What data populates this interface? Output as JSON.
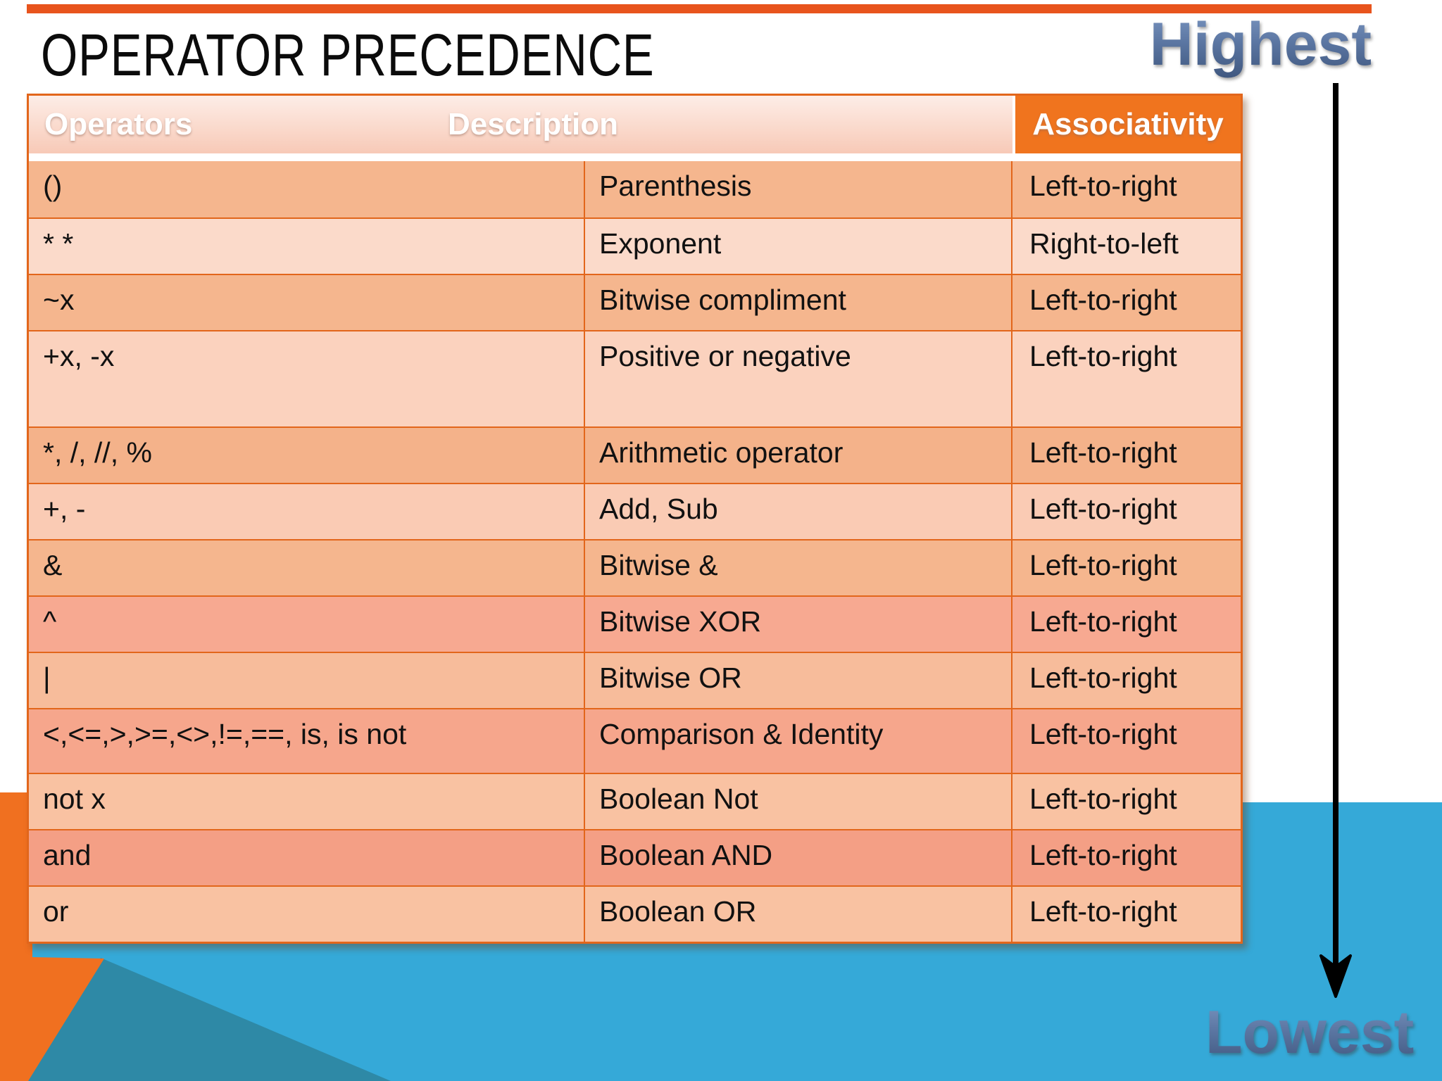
{
  "page": {
    "title": "OPERATOR PRECEDENCE"
  },
  "annotations": {
    "highest": "Highest",
    "lowest": "Lowest",
    "arrow_direction": "down"
  },
  "table": {
    "headers": [
      {
        "label": "Operators"
      },
      {
        "label": "Description"
      },
      {
        "label": "Associativity"
      }
    ],
    "rows": [
      {
        "operators": "()",
        "description": "Parenthesis",
        "associativity": "Left-to-right",
        "bg": "#F5B68E"
      },
      {
        "operators": "* *",
        "description": "Exponent",
        "associativity": "Right-to-left",
        "bg": "#FBDACA"
      },
      {
        "operators": "~x",
        "description": "Bitwise compliment",
        "associativity": "Left-to-right",
        "bg": "#F5B68E"
      },
      {
        "operators": "+x, -x",
        "description": "Positive or negative",
        "associativity": "Left-to-right",
        "bg": "#FBD2BE"
      },
      {
        "operators": "*, /, //, %",
        "description": "Arithmetic operator",
        "associativity": "Left-to-right",
        "bg": "#F4B28A"
      },
      {
        "operators": "+, -",
        "description": "Add, Sub",
        "associativity": "Left-to-right",
        "bg": "#FACBB4"
      },
      {
        "operators": "&",
        "description": "Bitwise &",
        "associativity": "Left-to-right",
        "bg": "#F5B68E"
      },
      {
        "operators": "^",
        "description": "Bitwise XOR",
        "associativity": "Left-to-right",
        "bg": "#F7A991"
      },
      {
        "operators": "|",
        "description": "Bitwise OR",
        "associativity": "Left-to-right",
        "bg": "#F7BC9B"
      },
      {
        "operators": "<,<=,>,>=,<>,!=,==, is, is not",
        "description": "Comparison & Identity",
        "associativity": "Left-to-right",
        "bg": "#F6A68C"
      },
      {
        "operators": "not x",
        "description": "Boolean Not",
        "associativity": "Left-to-right",
        "bg": "#F9C2A2"
      },
      {
        "operators": "and",
        "description": "Boolean AND",
        "associativity": "Left-to-right",
        "bg": "#F49F85"
      },
      {
        "operators": "or",
        "description": "Boolean OR",
        "associativity": "Left-to-right",
        "bg": "#F9C2A2"
      }
    ]
  },
  "colors": {
    "accent_orange": "#F0741E",
    "border_orange": "#E2661B",
    "top_strip": "#E8541D",
    "background_blue": "#35A9D8",
    "background_teal": "#2E89A6",
    "background_orange_shape": "#F07020",
    "label_blue": "#5C77A3",
    "arrow_black": "#000000"
  }
}
